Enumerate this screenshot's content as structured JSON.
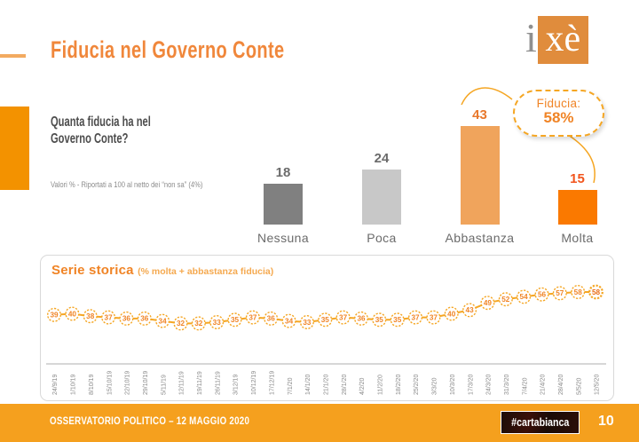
{
  "header": {
    "title": "Fiducia nel Governo Conte",
    "logo": {
      "i": "i",
      "xe": "xè"
    }
  },
  "question": {
    "line1": "Quanta fiducia ha nel",
    "line2": "Governo Conte?",
    "note": "Valori % - Riportati a 100 al netto dei “non sa” (4%)"
  },
  "badge": {
    "label": "Fiducia:",
    "value": "58%"
  },
  "colors": {
    "accent_orange": "#F39200",
    "title_orange": "#F0873B",
    "line_orange": "#F5A623",
    "marker_text": "#F08426",
    "marker_text_last": "#E86A10",
    "axis_gray": "#BFBFBF",
    "date_gray": "#8A8A8A",
    "footer_orange": "#F5A01E"
  },
  "chart_data": [
    {
      "type": "bar",
      "title": "Quanta fiducia ha nel Governo Conte?",
      "categories": [
        "Nessuna",
        "Poca",
        "Abbastanza",
        "Molta"
      ],
      "values": [
        18,
        24,
        43,
        15
      ],
      "bar_colors": [
        "#808080",
        "#C8C8C8",
        "#F0A45C",
        "#FA7900"
      ],
      "label_colors": [
        "#6B6B6B",
        "#6B6B6B",
        "#E8782C",
        "#F2551D"
      ],
      "ylabel": "Valori %",
      "ylim": [
        0,
        50
      ],
      "grid": false,
      "annotation": "Fiducia: 58%"
    },
    {
      "type": "line",
      "title": "Serie storica",
      "subtitle": "(% molta + abbastanza fiducia)",
      "x": [
        "24/9/19",
        "1/10/19",
        "8/10/19",
        "15/10/19",
        "22/10/19",
        "29/10/19",
        "5/11/19",
        "12/11/19",
        "19/11/19",
        "26/11/19",
        "3/12/19",
        "10/12/19",
        "17/12/19",
        "7/1/20",
        "14/1/20",
        "21/1/20",
        "28/1/20",
        "4/2/20",
        "11/2/20",
        "18/2/20",
        "25/2/20",
        "3/3/20",
        "10/3/20",
        "17/3/20",
        "24/3/20",
        "31/3/20",
        "7/4/20",
        "21/4/20",
        "28/4/20",
        "5/5/20",
        "12/5/20"
      ],
      "series": [
        {
          "name": "% molta + abbastanza fiducia",
          "values": [
            39,
            40,
            38,
            37,
            36,
            36,
            34,
            32,
            32,
            33,
            35,
            37,
            36,
            34,
            33,
            35,
            37,
            36,
            35,
            35,
            37,
            37,
            40,
            43,
            49,
            52,
            54,
            56,
            57,
            58,
            58
          ]
        }
      ],
      "ylim": [
        30,
        60
      ],
      "grid": false,
      "legend_position": "none"
    }
  ],
  "footer": {
    "left": "OSSERVATORIO POLITICO – 12 MAGGIO 2020",
    "brand": "#cartabianca",
    "page": "10"
  }
}
